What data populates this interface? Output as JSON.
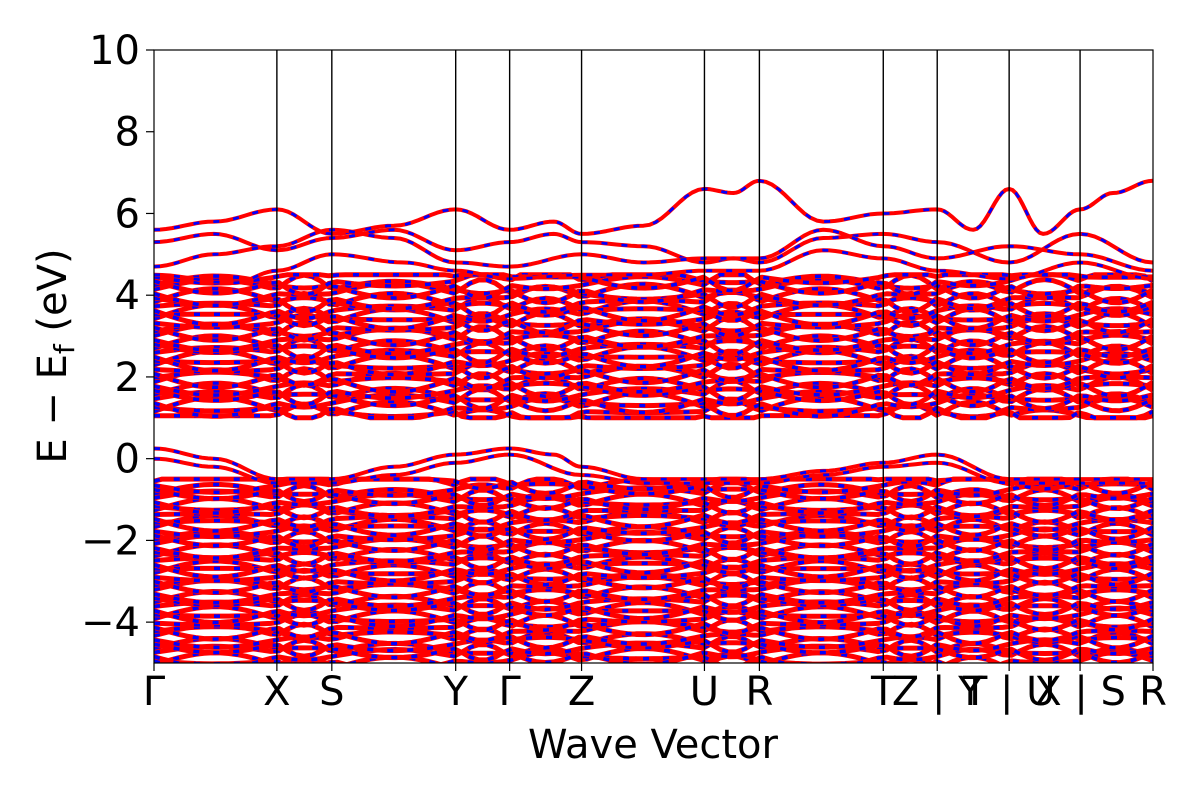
{
  "chart_data": {
    "type": "line",
    "title": "",
    "xlabel": "Wave Vector",
    "ylabel_main": "E − E",
    "ylabel_sub": "f",
    "ylabel_unit": " (eV)",
    "ylim": [
      -5,
      10
    ],
    "yticks": [
      10,
      8,
      6,
      4,
      2,
      0,
      -2,
      -4
    ],
    "ytick_labels": [
      "10",
      "8",
      "6",
      "4",
      "2",
      "0",
      "−2",
      "−4"
    ],
    "xlim": [
      0,
      1
    ],
    "kpoints": [
      {
        "label": "Γ",
        "x": 0.0
      },
      {
        "label": "X",
        "x": 0.123
      },
      {
        "label": "S",
        "x": 0.178
      },
      {
        "label": "Y",
        "x": 0.302
      },
      {
        "label": "Γ",
        "x": 0.356
      },
      {
        "label": "Z",
        "x": 0.428
      },
      {
        "label": "U",
        "x": 0.551
      },
      {
        "label": "R",
        "x": 0.606
      },
      {
        "label": "T",
        "x": 0.73
      },
      {
        "label": "Z | Y",
        "x": 0.784
      },
      {
        "label": "T | U",
        "x": 0.856
      },
      {
        "label": "X | S",
        "x": 0.927
      },
      {
        "label": "R",
        "x": 1.0
      }
    ],
    "grid": false,
    "series_colors": [
      "#ff0000",
      "#0000ff"
    ],
    "band_regions": {
      "conduction_dense": [
        1.0,
        4.5
      ],
      "gap": [
        0.3,
        1.0
      ],
      "valence_dense_top": -0.5
    },
    "bands": [
      {
        "style": "upper",
        "x": [
          0,
          0.06,
          0.123,
          0.178,
          0.24,
          0.302,
          0.356,
          0.4,
          0.428,
          0.49,
          0.551,
          0.58,
          0.606,
          0.67,
          0.73,
          0.784,
          0.82,
          0.856,
          0.89,
          0.927,
          0.96,
          1.0
        ],
        "y": [
          5.6,
          5.8,
          6.1,
          5.5,
          5.7,
          6.1,
          5.6,
          5.8,
          5.5,
          5.7,
          6.6,
          6.5,
          6.8,
          5.8,
          6.0,
          6.1,
          5.6,
          6.6,
          5.5,
          6.1,
          6.5,
          6.8
        ]
      },
      {
        "style": "upper",
        "x": [
          0,
          0.06,
          0.123,
          0.178,
          0.24,
          0.302,
          0.356,
          0.4,
          0.428,
          0.49,
          0.551,
          0.58,
          0.606,
          0.67,
          0.73,
          0.784,
          0.856,
          0.927,
          1.0
        ],
        "y": [
          5.3,
          5.5,
          5.1,
          5.4,
          5.6,
          5.1,
          5.3,
          5.5,
          5.3,
          5.2,
          4.8,
          4.9,
          4.8,
          5.4,
          5.5,
          5.3,
          4.8,
          5.5,
          4.8
        ]
      },
      {
        "style": "upper",
        "x": [
          0,
          0.06,
          0.123,
          0.178,
          0.24,
          0.302,
          0.356,
          0.428,
          0.49,
          0.551,
          0.606,
          0.67,
          0.73,
          0.784,
          0.856,
          0.927,
          1.0
        ],
        "y": [
          4.7,
          5.0,
          5.2,
          5.6,
          5.4,
          4.8,
          4.7,
          5.0,
          4.8,
          4.9,
          4.9,
          5.6,
          5.2,
          4.9,
          5.2,
          5.0,
          4.6
        ]
      },
      {
        "style": "upper",
        "x": [
          0,
          0.08,
          0.123,
          0.178,
          0.25,
          0.302,
          0.356,
          0.428,
          0.49,
          0.551,
          0.606,
          0.67,
          0.73,
          0.784,
          0.856,
          0.927,
          1.0
        ],
        "y": [
          4.5,
          4.3,
          4.6,
          5.0,
          4.8,
          4.6,
          4.4,
          4.5,
          4.5,
          4.6,
          4.6,
          5.1,
          4.9,
          4.6,
          4.4,
          4.8,
          4.4
        ]
      },
      {
        "style": "valence_top",
        "x": [
          0,
          0.06,
          0.123,
          0.178,
          0.24,
          0.302,
          0.356,
          0.4,
          0.428,
          0.49,
          0.551,
          0.606,
          0.67,
          0.73,
          0.784,
          0.856,
          0.927,
          1.0
        ],
        "y": [
          0.25,
          0.0,
          -0.5,
          -0.5,
          -0.2,
          0.1,
          0.25,
          0.1,
          -0.2,
          -0.5,
          -0.5,
          -0.5,
          -0.3,
          -0.1,
          0.1,
          -0.5,
          -0.5,
          -0.5
        ]
      },
      {
        "style": "valence_top",
        "x": [
          0,
          0.06,
          0.123,
          0.178,
          0.24,
          0.302,
          0.356,
          0.428,
          0.49,
          0.551,
          0.606,
          0.67,
          0.73,
          0.784,
          0.856,
          0.927,
          1.0
        ],
        "y": [
          0.0,
          -0.2,
          -0.6,
          -0.6,
          -0.4,
          -0.1,
          0.1,
          -0.4,
          -0.6,
          -0.6,
          -0.6,
          -0.4,
          -0.2,
          -0.1,
          -0.6,
          -0.6,
          -0.6
        ]
      }
    ]
  }
}
